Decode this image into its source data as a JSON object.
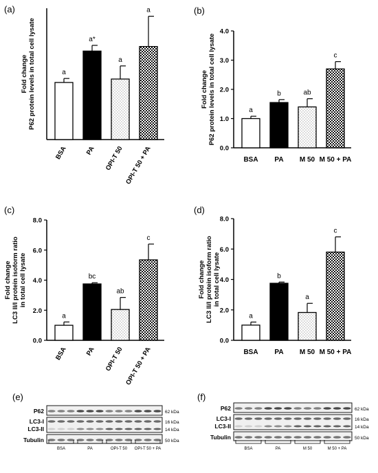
{
  "chart_data": [
    {
      "panel": "(a)",
      "type": "bar",
      "title": "",
      "ylabel": "Fold change\nP62 protein levels in total cell lysate",
      "ylim": [
        0,
        2.3
      ],
      "yticks": [],
      "categories": [
        "BSA",
        "PA",
        "OPI-T 50",
        "OPI-T 50 + PA"
      ],
      "values": [
        1.0,
        1.55,
        1.06,
        1.63
      ],
      "errors": [
        0.07,
        0.1,
        0.23,
        0.53
      ],
      "letters": [
        "a",
        "a*",
        "a",
        "a"
      ],
      "patterns": [
        "white",
        "black",
        "dots",
        "checker"
      ]
    },
    {
      "panel": "(b)",
      "type": "bar",
      "title": "",
      "ylabel": "Fold change\nP62 protein levels in total cell lysate",
      "ylim": [
        0,
        4.0
      ],
      "yticks": [
        "0.0",
        "1.0",
        "2.0",
        "3.0",
        "4.0"
      ],
      "categories": [
        "BSA",
        "PA",
        "M 50",
        "M 50 + PA"
      ],
      "values": [
        1.0,
        1.55,
        1.4,
        2.7
      ],
      "errors": [
        0.08,
        0.1,
        0.28,
        0.25
      ],
      "letters": [
        "a",
        "b",
        "ab",
        "c"
      ],
      "patterns": [
        "white",
        "black",
        "dots",
        "checker"
      ]
    },
    {
      "panel": "(c)",
      "type": "bar",
      "title": "",
      "ylabel": "Fold change\nLC3 II/I protein isoform ratio\nin total cell lysate",
      "ylim": [
        0,
        8.0
      ],
      "yticks": [
        "0.0",
        "2.0",
        "4.0",
        "6.0",
        "8.0"
      ],
      "categories": [
        "BSA",
        "PA",
        "OPI-T 50",
        "OPI-T 50 + PA"
      ],
      "values": [
        1.0,
        3.75,
        2.05,
        5.35
      ],
      "errors": [
        0.22,
        0.08,
        0.8,
        1.05
      ],
      "letters": [
        "a",
        "bc",
        "ab",
        "c"
      ],
      "patterns": [
        "white",
        "black",
        "dots",
        "checker"
      ]
    },
    {
      "panel": "(d)",
      "type": "bar",
      "title": "",
      "ylabel": "Fold change\nLC3 II/I protein isoform ratio\nin total cell lysate",
      "ylim": [
        0,
        8.0
      ],
      "yticks": [
        "0.0",
        "2.0",
        "4.0",
        "6.0",
        "8.0"
      ],
      "categories": [
        "BSA",
        "PA",
        "M 50",
        "M 50 + PA"
      ],
      "values": [
        1.0,
        3.75,
        1.83,
        5.8
      ],
      "errors": [
        0.2,
        0.08,
        0.6,
        1.0
      ],
      "letters": [
        "a",
        "b",
        "a",
        "c"
      ],
      "patterns": [
        "white",
        "black",
        "dots",
        "checker"
      ]
    }
  ],
  "blots": [
    {
      "panel": "(e)",
      "rows": [
        "P62",
        "LC3-I",
        "LC3-II",
        "Tubulin"
      ],
      "sizes": [
        "62 kDa",
        "16 kDa",
        "14 kDa",
        "50 kDa"
      ],
      "groups": [
        "BSA",
        "PA",
        "OPI-T 50",
        "OPI-T 50 + PA"
      ]
    },
    {
      "panel": "(f)",
      "rows": [
        "P62",
        "LC3-I",
        "LC3-II",
        "Tubulin"
      ],
      "sizes": [
        "62 kDa",
        "16 kDa",
        "14 kDa",
        "50 kDa"
      ],
      "groups": [
        "BSA",
        "PA",
        "M 50",
        "M 50 + PA"
      ]
    }
  ]
}
